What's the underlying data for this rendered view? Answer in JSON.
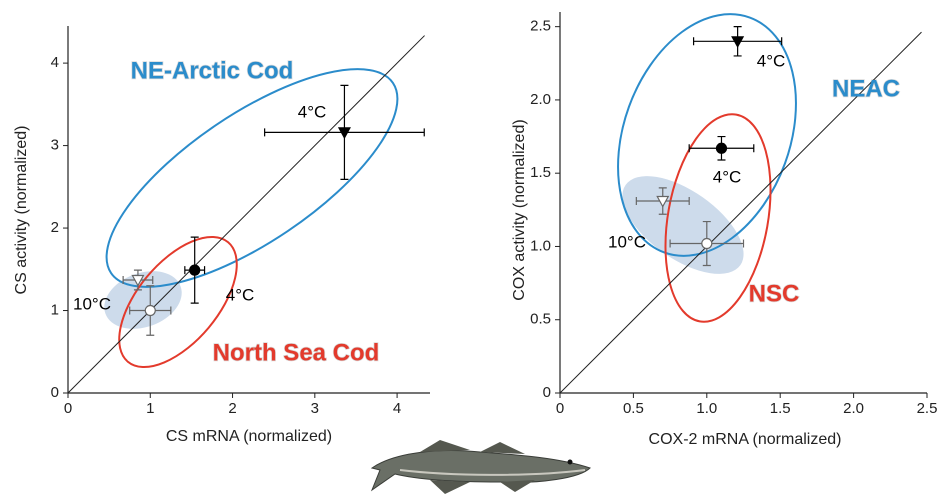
{
  "chart_data": [
    {
      "type": "scatter",
      "x_label": "CS mRNA (normalized)",
      "y_label": "CS activity (normalized)",
      "xlim": [
        0,
        4.4
      ],
      "ylim": [
        0,
        4.45
      ],
      "xticks": [
        0,
        1,
        2,
        3,
        4
      ],
      "yticks": [
        0,
        1,
        2,
        3,
        4
      ],
      "series": [
        {
          "x": [
            3.36
          ],
          "values": [
            3.16
          ],
          "xerr": [
            0.97
          ],
          "yerr": [
            0.57
          ],
          "marker": "triangle-down",
          "filled": true,
          "color": "#000000"
        },
        {
          "x": [
            1.54
          ],
          "values": [
            1.49
          ],
          "xerr": [
            0.12
          ],
          "yerr": [
            0.4
          ],
          "marker": "circle",
          "filled": true,
          "color": "#000000"
        },
        {
          "x": [
            0.85
          ],
          "values": [
            1.37
          ],
          "xerr": [
            0.18
          ],
          "yerr": [
            0.12
          ],
          "marker": "triangle-down",
          "filled": false,
          "color": "#666666"
        },
        {
          "x": [
            1.0
          ],
          "values": [
            1.0
          ],
          "xerr": [
            0.25
          ],
          "yerr": [
            0.3
          ],
          "marker": "circle",
          "filled": false,
          "color": "#666666"
        }
      ],
      "annotations": [
        {
          "text": "NE-Arctic Cod",
          "color": "#2b8ccb"
        },
        {
          "text": "4°C",
          "color": "#000000"
        },
        {
          "text": "4°C",
          "color": "#000000"
        },
        {
          "text": "10°C",
          "color": "#000000"
        },
        {
          "text": "North Sea Cod",
          "color": "#e33a2c"
        }
      ]
    },
    {
      "type": "scatter",
      "x_label": "COX-2 mRNA (normalized)",
      "y_label": "COX activity (normalized)",
      "xlim": [
        0,
        2.5
      ],
      "ylim": [
        0,
        2.6
      ],
      "xticks": [
        0,
        0.5,
        {
          "value": 1,
          "label": "1.0"
        },
        1.5,
        {
          "value": 2,
          "label": "2.0"
        },
        2.5
      ],
      "yticks": [
        0,
        0.5,
        {
          "value": 1,
          "label": "1.0"
        },
        1.5,
        {
          "value": 2,
          "label": "2.0"
        },
        2.5
      ],
      "series": [
        {
          "x": [
            1.21
          ],
          "values": [
            2.4
          ],
          "xerr": [
            0.3
          ],
          "yerr": [
            0.1
          ],
          "marker": "triangle-down",
          "filled": true,
          "color": "#000000"
        },
        {
          "x": [
            1.1
          ],
          "values": [
            1.67
          ],
          "xerr": [
            0.22
          ],
          "yerr": [
            0.08
          ],
          "marker": "circle",
          "filled": true,
          "color": "#000000"
        },
        {
          "x": [
            0.7
          ],
          "values": [
            1.31
          ],
          "xerr": [
            0.18
          ],
          "yerr": [
            0.09
          ],
          "marker": "triangle-down",
          "filled": false,
          "color": "#666666"
        },
        {
          "x": [
            1.0
          ],
          "values": [
            1.02
          ],
          "xerr": [
            0.25
          ],
          "yerr": [
            0.15
          ],
          "marker": "circle",
          "filled": false,
          "color": "#666666"
        }
      ],
      "annotations": [
        {
          "text": "4°C",
          "color": "#000000"
        },
        {
          "text": "NEAC",
          "color": "#2b8ccb"
        },
        {
          "text": "4°C",
          "color": "#000000"
        },
        {
          "text": "10°C",
          "color": "#000000"
        },
        {
          "text": "NSC",
          "color": "#e33a2c"
        }
      ]
    }
  ]
}
